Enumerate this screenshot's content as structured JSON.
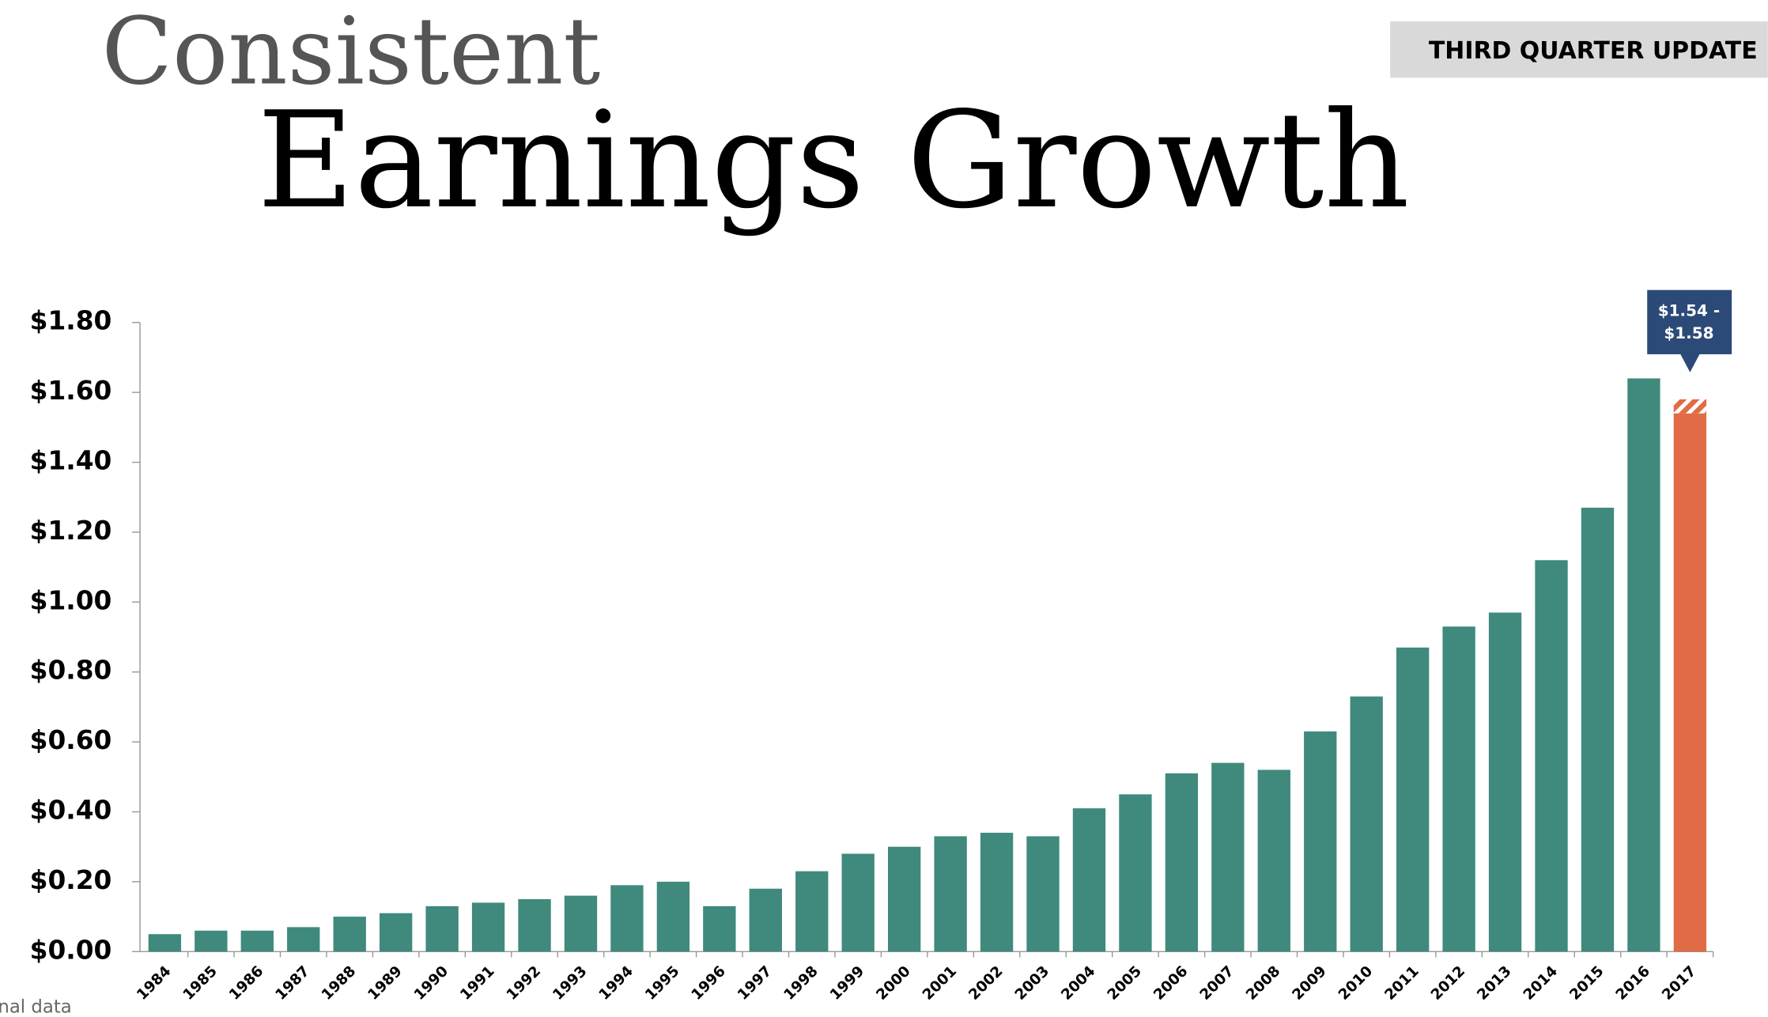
{
  "header": {
    "title_line1": "Consistent",
    "title_line2": "Earnings Growth",
    "badge": "THIRD QUARTER UPDATE"
  },
  "footnote": "nal data",
  "chart_data": {
    "type": "bar",
    "categories": [
      "1984",
      "1985",
      "1986",
      "1987",
      "1988",
      "1989",
      "1990",
      "1991",
      "1992",
      "1993",
      "1994",
      "1995",
      "1996",
      "1997",
      "1998",
      "1999",
      "2000",
      "2001",
      "2002",
      "2003",
      "2004",
      "2005",
      "2006",
      "2007",
      "2008",
      "2009",
      "2010",
      "2011",
      "2012",
      "2013",
      "2014",
      "2015",
      "2016",
      "2017"
    ],
    "values": [
      0.05,
      0.06,
      0.06,
      0.07,
      0.1,
      0.11,
      0.13,
      0.14,
      0.15,
      0.16,
      0.19,
      0.2,
      0.13,
      0.18,
      0.23,
      0.28,
      0.3,
      0.33,
      0.34,
      0.33,
      0.41,
      0.45,
      0.51,
      0.54,
      0.52,
      0.63,
      0.73,
      0.87,
      0.93,
      0.97,
      1.12,
      1.27,
      1.64,
      null
    ],
    "color": "#3f8a7c",
    "forecast": {
      "low": 1.54,
      "high": 1.58,
      "color": "#e06b45",
      "label_lines": [
        "$1.54 -",
        "$1.58"
      ],
      "label_color": "#2c4a77"
    },
    "ylim": [
      0,
      1.8
    ],
    "yticks": [
      {
        "value": 0,
        "label": "$0.00"
      },
      {
        "value": 0.2,
        "label": "$0.20"
      },
      {
        "value": 0.4,
        "label": "$0.40"
      },
      {
        "value": 0.6,
        "label": "$0.60"
      },
      {
        "value": 0.8,
        "label": "$0.80"
      },
      {
        "value": 1.0,
        "label": "$1.00"
      },
      {
        "value": 1.2,
        "label": "$1.20"
      },
      {
        "value": 1.4,
        "label": "$1.40"
      },
      {
        "value": 1.6,
        "label": "$1.60"
      },
      {
        "value": 1.8,
        "label": "$1.80"
      }
    ],
    "grid": false
  }
}
